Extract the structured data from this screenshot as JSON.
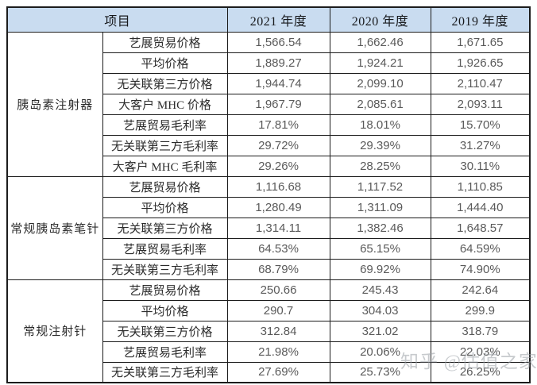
{
  "table": {
    "header": {
      "item_label": "项目",
      "year_columns": [
        "2021 年度",
        "2020 年度",
        "2019 年度"
      ]
    },
    "groups": [
      {
        "label": "胰岛素注射器",
        "rows": [
          {
            "metric": "艺展贸易价格",
            "values": [
              "1,566.54",
              "1,662.46",
              "1,671.65"
            ]
          },
          {
            "metric": "平均价格",
            "values": [
              "1,889.27",
              "1,924.21",
              "1,926.65"
            ]
          },
          {
            "metric": "无关联第三方价格",
            "values": [
              "1,944.74",
              "2,099.10",
              "2,110.47"
            ]
          },
          {
            "metric": "大客户 MHC 价格",
            "values": [
              "1,967.79",
              "2,085.61",
              "2,093.11"
            ]
          },
          {
            "metric": "艺展贸易毛利率",
            "values": [
              "17.81%",
              "18.01%",
              "15.70%"
            ]
          },
          {
            "metric": "无关联第三方毛利率",
            "values": [
              "29.72%",
              "29.39%",
              "31.27%"
            ]
          },
          {
            "metric": "大客户 MHC 毛利率",
            "values": [
              "29.26%",
              "28.25%",
              "30.11%"
            ]
          }
        ]
      },
      {
        "label": "常规胰岛素笔针",
        "rows": [
          {
            "metric": "艺展贸易价格",
            "values": [
              "1,116.68",
              "1,117.52",
              "1,110.85"
            ]
          },
          {
            "metric": "平均价格",
            "values": [
              "1,280.49",
              "1,311.09",
              "1,444.40"
            ]
          },
          {
            "metric": "无关联第三方价格",
            "values": [
              "1,314.11",
              "1,382.46",
              "1,648.57"
            ]
          },
          {
            "metric": "艺展贸易毛利率",
            "values": [
              "64.53%",
              "65.15%",
              "64.59%"
            ]
          },
          {
            "metric": "无关联第三方毛利率",
            "values": [
              "68.79%",
              "69.92%",
              "74.90%"
            ]
          }
        ]
      },
      {
        "label": "常规注射针",
        "rows": [
          {
            "metric": "艺展贸易价格",
            "values": [
              "250.66",
              "245.43",
              "242.64"
            ]
          },
          {
            "metric": "平均价格",
            "values": [
              "290.7",
              "304.03",
              "299.9"
            ]
          },
          {
            "metric": "无关联第三方价格",
            "values": [
              "312.84",
              "321.02",
              "318.79"
            ]
          },
          {
            "metric": "艺展贸易毛利率",
            "values": [
              "21.98%",
              "20.06%",
              "22.03%"
            ]
          },
          {
            "metric": "无关联第三方毛利率",
            "values": [
              "27.69%",
              "25.73%",
              "26.25%"
            ]
          }
        ]
      }
    ]
  },
  "watermark": {
    "text": "知乎 @估值之家"
  },
  "colors": {
    "header_bg": "#c9dcf0",
    "border": "#1c1c1c",
    "label_text": "#2c2c2c",
    "value_text": "#5a5a5a",
    "watermark_text": "#9aa0a6"
  }
}
